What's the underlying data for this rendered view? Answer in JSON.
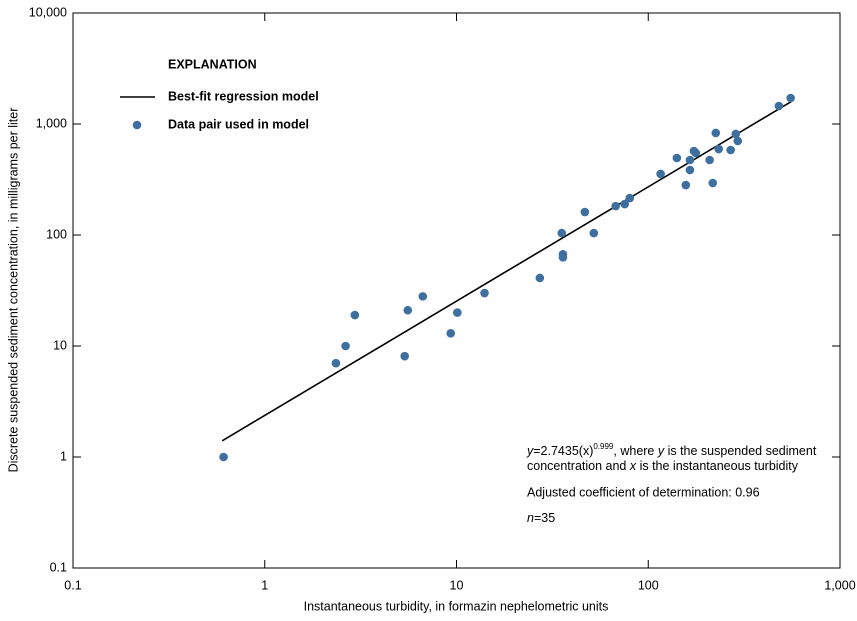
{
  "chart_data": {
    "type": "scatter",
    "xlabel": "Instantaneous turbidity, in formazin nephelometric units",
    "ylabel": "Discrete suspended sediment concentration, in milligrams per liter",
    "xscale": "log",
    "yscale": "log",
    "xlim": [
      0.1,
      1000
    ],
    "ylim": [
      0.1,
      10000
    ],
    "xticks": [
      0.1,
      1,
      10,
      100,
      {
        "value": 1000,
        "label": "1,000"
      }
    ],
    "yticks": [
      0.1,
      1,
      10,
      100,
      {
        "value": 1000,
        "label": "1,000"
      },
      {
        "value": 10000,
        "label": "10,000"
      }
    ],
    "grid": false,
    "legend_title": "EXPLANATION",
    "series": [
      {
        "name": "Best-fit regression model",
        "type": "line",
        "color": "#000000",
        "x": [
          0.6,
          560
        ],
        "values": [
          1.4,
          1600
        ]
      },
      {
        "name": "Data pair used in model",
        "type": "scatter",
        "color": "#3f6f9f",
        "x": [
          0.61,
          2.35,
          2.64,
          2.95,
          5.37,
          5.57,
          6.67,
          9.33,
          10.1,
          14.0,
          27.2,
          35.4,
          35.9,
          35.9,
          46.7,
          52.0,
          67.6,
          75.4,
          80.1,
          116,
          141,
          157,
          165,
          165,
          173,
          177,
          209,
          217,
          225,
          233,
          269,
          286,
          293,
          480,
          553
        ],
        "values": [
          1,
          7.0,
          10,
          19,
          8.1,
          21,
          28,
          13,
          20,
          30,
          41,
          104,
          67,
          63,
          161,
          104,
          182,
          190,
          215,
          355,
          494,
          282,
          474,
          385,
          571,
          548,
          474,
          294,
          830,
          595,
          583,
          813,
          703,
          1452,
          1715
        ]
      }
    ],
    "annotations": {
      "equation_line1": [
        "y",
        "=2.7435(x)",
        "0.999",
        ", where ",
        "y",
        " is the suspended sediment"
      ],
      "equation_line2": [
        "concentration and ",
        "x",
        " is the instantaneous turbidity"
      ],
      "r2": "Adjusted coefficient of determination: 0.96",
      "n": [
        "n",
        "=35"
      ]
    }
  }
}
